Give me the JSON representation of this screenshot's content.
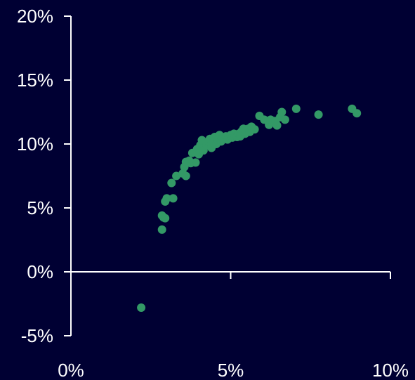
{
  "chart_data": {
    "type": "scatter",
    "title": "",
    "xlabel": "",
    "ylabel": "",
    "xlim": [
      0,
      10
    ],
    "ylim": [
      -5,
      20
    ],
    "x_ticks": [
      {
        "value": 0,
        "label": "0%"
      },
      {
        "value": 5,
        "label": "5%"
      },
      {
        "value": 10,
        "label": "10%"
      }
    ],
    "y_ticks": [
      {
        "value": 20,
        "label": "20%"
      },
      {
        "value": 15,
        "label": "15%"
      },
      {
        "value": 10,
        "label": "10%"
      },
      {
        "value": 5,
        "label": "5%"
      },
      {
        "value": 0,
        "label": "0%"
      },
      {
        "value": -5,
        "label": "-5%"
      }
    ],
    "grid": false,
    "legend": "none",
    "colors": {
      "background": "#000033",
      "axis": "#ffffff",
      "text": "#ffffff",
      "marker": "#339966"
    },
    "points": [
      {
        "x": 2.2,
        "y": -2.8
      },
      {
        "x": 2.85,
        "y": 3.3
      },
      {
        "x": 2.85,
        "y": 4.4
      },
      {
        "x": 2.9,
        "y": 4.25
      },
      {
        "x": 2.95,
        "y": 4.2
      },
      {
        "x": 2.95,
        "y": 5.5
      },
      {
        "x": 3.0,
        "y": 5.75
      },
      {
        "x": 3.2,
        "y": 5.75
      },
      {
        "x": 3.15,
        "y": 6.95
      },
      {
        "x": 3.3,
        "y": 7.5
      },
      {
        "x": 3.5,
        "y": 7.7
      },
      {
        "x": 3.6,
        "y": 7.5
      },
      {
        "x": 3.55,
        "y": 8.2
      },
      {
        "x": 3.6,
        "y": 8.6
      },
      {
        "x": 3.75,
        "y": 8.5
      },
      {
        "x": 3.9,
        "y": 8.55
      },
      {
        "x": 3.7,
        "y": 8.7
      },
      {
        "x": 3.8,
        "y": 9.3
      },
      {
        "x": 3.95,
        "y": 9.6
      },
      {
        "x": 4.0,
        "y": 9.2
      },
      {
        "x": 4.05,
        "y": 9.9
      },
      {
        "x": 4.1,
        "y": 10.3
      },
      {
        "x": 4.15,
        "y": 9.5
      },
      {
        "x": 4.25,
        "y": 9.9
      },
      {
        "x": 4.3,
        "y": 10.2
      },
      {
        "x": 4.35,
        "y": 10.4
      },
      {
        "x": 4.4,
        "y": 9.7
      },
      {
        "x": 4.45,
        "y": 10.1
      },
      {
        "x": 4.5,
        "y": 10.55
      },
      {
        "x": 4.55,
        "y": 10.0
      },
      {
        "x": 4.6,
        "y": 10.3
      },
      {
        "x": 4.65,
        "y": 10.7
      },
      {
        "x": 4.7,
        "y": 10.2
      },
      {
        "x": 4.75,
        "y": 10.45
      },
      {
        "x": 4.85,
        "y": 10.6
      },
      {
        "x": 4.9,
        "y": 10.35
      },
      {
        "x": 5.0,
        "y": 10.7
      },
      {
        "x": 5.05,
        "y": 10.5
      },
      {
        "x": 5.1,
        "y": 10.8
      },
      {
        "x": 5.2,
        "y": 10.55
      },
      {
        "x": 5.25,
        "y": 10.8
      },
      {
        "x": 5.3,
        "y": 10.6
      },
      {
        "x": 5.35,
        "y": 11.0
      },
      {
        "x": 5.4,
        "y": 11.2
      },
      {
        "x": 5.45,
        "y": 10.8
      },
      {
        "x": 5.55,
        "y": 11.2
      },
      {
        "x": 5.6,
        "y": 10.95
      },
      {
        "x": 5.65,
        "y": 11.35
      },
      {
        "x": 5.75,
        "y": 11.15
      },
      {
        "x": 5.9,
        "y": 12.2
      },
      {
        "x": 6.05,
        "y": 11.9
      },
      {
        "x": 6.2,
        "y": 11.5
      },
      {
        "x": 6.25,
        "y": 11.9
      },
      {
        "x": 6.4,
        "y": 11.8
      },
      {
        "x": 6.45,
        "y": 11.45
      },
      {
        "x": 6.55,
        "y": 12.1
      },
      {
        "x": 6.6,
        "y": 12.5
      },
      {
        "x": 6.7,
        "y": 11.9
      },
      {
        "x": 7.05,
        "y": 12.75
      },
      {
        "x": 7.75,
        "y": 12.3
      },
      {
        "x": 8.8,
        "y": 12.75
      },
      {
        "x": 8.95,
        "y": 12.4
      }
    ]
  }
}
